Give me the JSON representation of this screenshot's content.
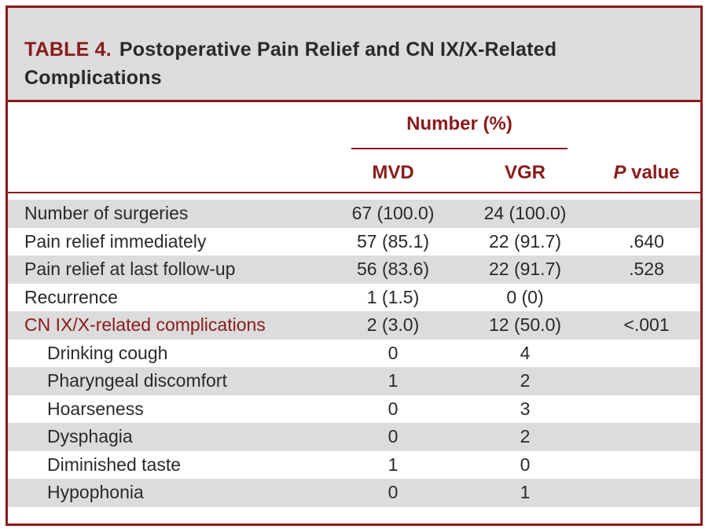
{
  "table": {
    "label": "TABLE 4.",
    "title": "Postoperative Pain Relief and CN IX/X-Related Complications",
    "group_header": "Number (%)",
    "columns": {
      "mvd": "MVD",
      "vgr": "VGR",
      "p_italic": "P",
      "p_rest": " value"
    },
    "rows": [
      {
        "label": "Number of surgeries",
        "mvd": "67 (100.0)",
        "vgr": "24 (100.0)",
        "p": ""
      },
      {
        "label": "Pain relief immediately",
        "mvd": "57 (85.1)",
        "vgr": "22 (91.7)",
        "p": ".640"
      },
      {
        "label": "Pain relief at last follow-up",
        "mvd": "56 (83.6)",
        "vgr": "22 (91.7)",
        "p": ".528"
      },
      {
        "label": "Recurrence",
        "mvd": "1 (1.5)",
        "vgr": "0 (0)",
        "p": ""
      },
      {
        "label": "CN IX/X-related complications",
        "mvd": "2 (3.0)",
        "vgr": "12 (50.0)",
        "p": "<.001"
      },
      {
        "label": "Drinking cough",
        "mvd": "0",
        "vgr": "4",
        "p": ""
      },
      {
        "label": "Pharyngeal discomfort",
        "mvd": "1",
        "vgr": "2",
        "p": ""
      },
      {
        "label": "Hoarseness",
        "mvd": "0",
        "vgr": "3",
        "p": ""
      },
      {
        "label": "Dysphagia",
        "mvd": "0",
        "vgr": "2",
        "p": ""
      },
      {
        "label": "Diminished taste",
        "mvd": "1",
        "vgr": "0",
        "p": ""
      },
      {
        "label": "Hypophonia",
        "mvd": "0",
        "vgr": "1",
        "p": ""
      }
    ]
  },
  "colors": {
    "accent": "#8b1a1a",
    "shade": "#dcdcdc",
    "text": "#2a2a2a"
  }
}
